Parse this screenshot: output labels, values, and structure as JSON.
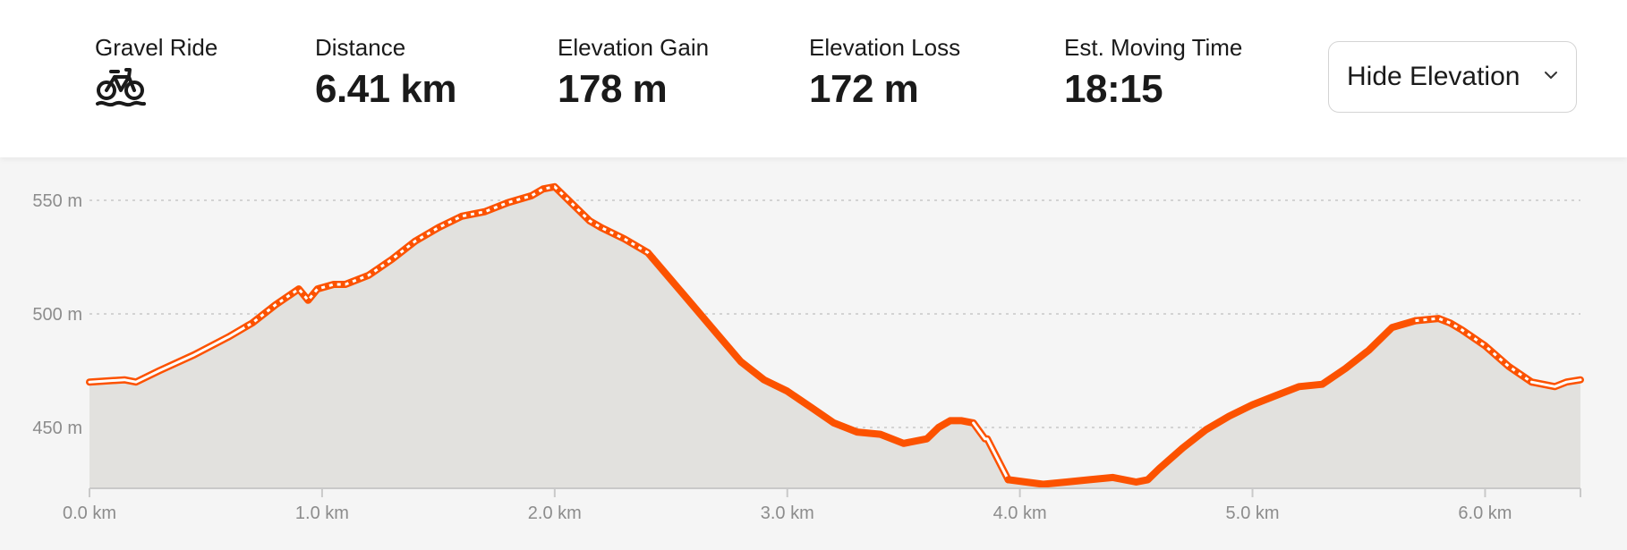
{
  "activity": {
    "label": "Gravel Ride",
    "icon": "gravel-bike-icon"
  },
  "stats": [
    {
      "label": "Distance",
      "value": "6.41 km"
    },
    {
      "label": "Elevation Gain",
      "value": "178 m"
    },
    {
      "label": "Elevation Loss",
      "value": "172 m"
    },
    {
      "label": "Est. Moving Time",
      "value": "18:15"
    }
  ],
  "toggle": {
    "label": "Hide Elevation",
    "icon": "chevron-down-icon"
  },
  "colors": {
    "accent": "#fc5200",
    "fill": "#e2e1de",
    "grid": "#c8c8c8",
    "axis": "#c9c9c9"
  },
  "chart_data": {
    "type": "area",
    "xlabel": "",
    "ylabel": "",
    "xlim": [
      0,
      6.41
    ],
    "ylim": [
      425,
      562
    ],
    "x_ticks": [
      0,
      1,
      2,
      3,
      4,
      5,
      6
    ],
    "x_tick_labels": [
      "0.0 km",
      "1.0 km",
      "2.0 km",
      "3.0 km",
      "4.0 km",
      "5.0 km",
      "6.0 km"
    ],
    "y_ticks": [
      550,
      500,
      450
    ],
    "y_tick_labels": [
      "550 m",
      "500 m",
      "450 m"
    ],
    "grid": true,
    "series": [
      {
        "x": [
          0,
          0.15,
          0.2,
          0.3,
          0.45,
          0.6,
          0.7,
          0.8,
          0.9,
          0.94,
          0.98,
          1.05,
          1.1,
          1.2,
          1.3,
          1.4,
          1.5,
          1.6,
          1.7,
          1.8,
          1.9,
          1.95,
          2.0,
          2.05,
          2.1,
          2.15,
          2.2,
          2.3,
          2.4,
          2.5,
          2.6,
          2.7,
          2.8,
          2.9,
          3.0,
          3.1,
          3.2,
          3.3,
          3.4,
          3.5,
          3.6,
          3.65,
          3.7,
          3.75,
          3.8,
          3.85,
          3.86,
          3.95,
          4.1,
          4.2,
          4.3,
          4.4,
          4.5,
          4.55,
          4.6,
          4.7,
          4.8,
          4.9,
          5.0,
          5.1,
          5.2,
          5.3,
          5.4,
          5.5,
          5.6,
          5.7,
          5.8,
          5.85,
          5.9,
          6.0,
          6.1,
          6.2,
          6.3,
          6.35,
          6.41
        ],
        "y": [
          470,
          471,
          470,
          475,
          482,
          490,
          496,
          504,
          511,
          506,
          511,
          513,
          513,
          517,
          524,
          532,
          538,
          543,
          545,
          549,
          552,
          555,
          556,
          551,
          546,
          541,
          538,
          533,
          527,
          515,
          503,
          491,
          479,
          471,
          466,
          459,
          452,
          448,
          447,
          443,
          445,
          450,
          453,
          453,
          452,
          445,
          445,
          427,
          425,
          426,
          427,
          428,
          426,
          427,
          432,
          441,
          449,
          455,
          460,
          464,
          468,
          469,
          476,
          484,
          494,
          497,
          498,
          496,
          493,
          486,
          477,
          470,
          468,
          470,
          471
        ]
      }
    ],
    "segments": [
      {
        "style": "outline",
        "x_from": 0,
        "x_to": 0.68
      },
      {
        "style": "dashed",
        "x_from": 0.68,
        "x_to": 2.42
      },
      {
        "style": "solid",
        "x_from": 2.42,
        "x_to": 3.8
      },
      {
        "style": "outline",
        "x_from": 3.8,
        "x_to": 3.95
      },
      {
        "style": "solid",
        "x_from": 3.95,
        "x_to": 5.7
      },
      {
        "style": "dashed",
        "x_from": 5.7,
        "x_to": 6.2
      },
      {
        "style": "outline",
        "x_from": 6.2,
        "x_to": 6.41
      }
    ]
  }
}
